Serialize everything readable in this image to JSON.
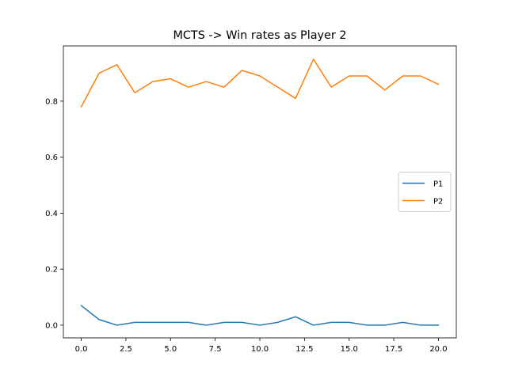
{
  "chart_data": {
    "type": "line",
    "title": "MCTS -> Win rates as Player 2",
    "xlabel": "",
    "ylabel": "",
    "xlim": [
      -1,
      21
    ],
    "ylim": [
      -0.0454,
      0.9974
    ],
    "xticks": [
      0.0,
      2.5,
      5.0,
      7.5,
      10.0,
      12.5,
      15.0,
      17.5,
      20.0
    ],
    "xtick_labels": [
      "0.0",
      "2.5",
      "5.0",
      "7.5",
      "10.0",
      "12.5",
      "15.0",
      "17.5",
      "20.0"
    ],
    "yticks": [
      0.0,
      0.2,
      0.4,
      0.6,
      0.8
    ],
    "ytick_labels": [
      "0.0",
      "0.2",
      "0.4",
      "0.6",
      "0.8"
    ],
    "grid": false,
    "legend_position": "center-right",
    "x": [
      0,
      1,
      2,
      3,
      4,
      5,
      6,
      7,
      8,
      9,
      10,
      11,
      12,
      13,
      14,
      15,
      16,
      17,
      18,
      19,
      20
    ],
    "series": [
      {
        "name": "P1",
        "color": "#1f77b4",
        "values": [
          0.07,
          0.02,
          0.0,
          0.01,
          0.01,
          0.01,
          0.01,
          0.0,
          0.01,
          0.01,
          0.0,
          0.01,
          0.03,
          0.0,
          0.01,
          0.01,
          0.0,
          0.0,
          0.01,
          0.0,
          0.0
        ]
      },
      {
        "name": "P2",
        "color": "#ff7f0e",
        "values": [
          0.78,
          0.9,
          0.93,
          0.83,
          0.87,
          0.88,
          0.85,
          0.87,
          0.85,
          0.91,
          0.89,
          0.85,
          0.81,
          0.95,
          0.85,
          0.89,
          0.89,
          0.84,
          0.89,
          0.89,
          0.86
        ]
      }
    ]
  }
}
